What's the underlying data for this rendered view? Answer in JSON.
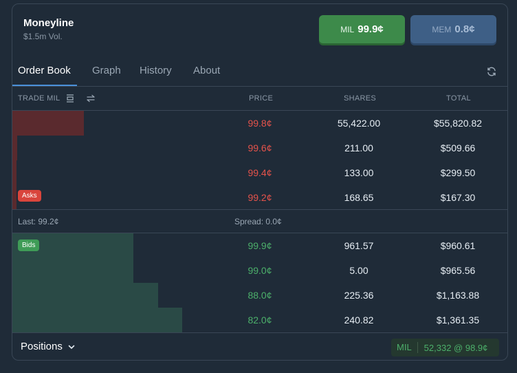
{
  "market": {
    "title": "Moneyline",
    "volume": "$1.5m Vol."
  },
  "outcomes": {
    "mil": {
      "label": "MIL",
      "price": "99.9¢",
      "color": "#3d8a4a"
    },
    "mem": {
      "label": "MEM",
      "price": "0.8¢",
      "color": "#3e5f86"
    }
  },
  "tabs": [
    {
      "label": "Order Book",
      "active": true
    },
    {
      "label": "Graph",
      "active": false
    },
    {
      "label": "History",
      "active": false
    },
    {
      "label": "About",
      "active": false
    }
  ],
  "icons": {
    "refresh": "refresh-icon",
    "book_layout": "book-layout-icon",
    "swap": "swap-arrows-icon",
    "chevron": "chevron-down-icon"
  },
  "columns": {
    "trade": "TRADE MIL",
    "price": "PRICE",
    "shares": "SHARES",
    "total": "TOTAL"
  },
  "asks_label": "Asks",
  "bids_label": "Bids",
  "asks": [
    {
      "price": "99.8¢",
      "shares": "55,422.00",
      "total": "$55,820.82",
      "depth": 0.145
    },
    {
      "price": "99.6¢",
      "shares": "211.00",
      "total": "$509.66",
      "depth": 0.01
    },
    {
      "price": "99.4¢",
      "shares": "133.00",
      "total": "$299.50",
      "depth": 0.008
    },
    {
      "price": "99.2¢",
      "shares": "168.65",
      "total": "$167.30",
      "depth": 0.008
    }
  ],
  "spread_bar": {
    "last": "Last: 99.2¢",
    "spread": "Spread: 0.0¢"
  },
  "bids": [
    {
      "price": "99.9¢",
      "shares": "961.57",
      "total": "$960.61",
      "depth": 0.245
    },
    {
      "price": "99.0¢",
      "shares": "5.00",
      "total": "$965.56",
      "depth": 0.245
    },
    {
      "price": "88.0¢",
      "shares": "225.36",
      "total": "$1,163.88",
      "depth": 0.294
    },
    {
      "price": "82.0¢",
      "shares": "240.82",
      "total": "$1,361.35",
      "depth": 0.343
    }
  ],
  "footer": {
    "positions_label": "Positions",
    "position_side": "MIL",
    "position_holding": "52,332 @ 98.9¢"
  },
  "colors": {
    "ask": "#e5534b",
    "bid": "#4caf6a",
    "accent": "#4a90d9"
  }
}
